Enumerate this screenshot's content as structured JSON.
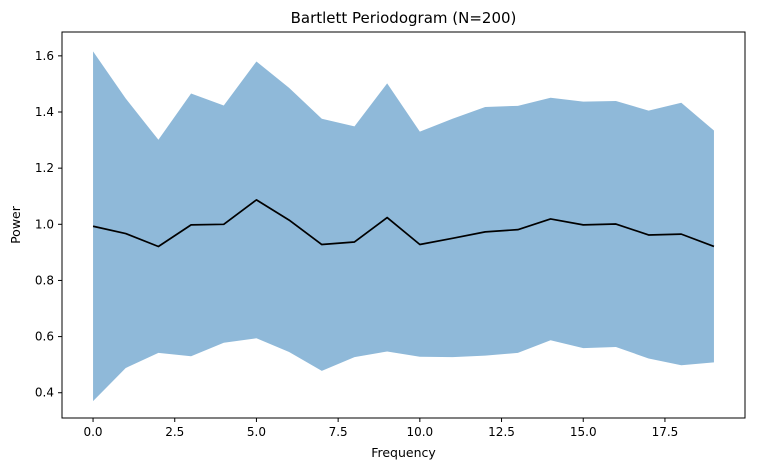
{
  "chart_data": {
    "type": "line",
    "title": "Bartlett Periodogram (N=200)",
    "xlabel": "Frequency",
    "ylabel": "Power",
    "xlim": [
      -0.95,
      19.95
    ],
    "ylim": [
      0.31,
      1.685
    ],
    "xticks": [
      0.0,
      2.5,
      5.0,
      7.5,
      10.0,
      12.5,
      15.0,
      17.5
    ],
    "xtick_labels": [
      "0.0",
      "2.5",
      "5.0",
      "7.5",
      "10.0",
      "12.5",
      "15.0",
      "17.5"
    ],
    "yticks": [
      0.4,
      0.6,
      0.8,
      1.0,
      1.2,
      1.4,
      1.6
    ],
    "ytick_labels": [
      "0.4",
      "0.6",
      "0.8",
      "1.0",
      "1.2",
      "1.4",
      "1.6"
    ],
    "grid": false,
    "x": [
      0,
      1,
      2,
      3,
      4,
      5,
      6,
      7,
      8,
      9,
      10,
      11,
      12,
      13,
      14,
      15,
      16,
      17,
      18,
      19
    ],
    "series": [
      {
        "type": "line",
        "color": "#000000",
        "values": [
          0.993,
          0.967,
          0.921,
          0.998,
          1.0,
          1.087,
          1.015,
          0.928,
          0.937,
          1.024,
          0.928,
          0.95,
          0.973,
          0.981,
          1.019,
          0.998,
          1.001,
          0.962,
          0.965,
          0.921
        ]
      },
      {
        "type": "band",
        "color": "#8fb9d9",
        "upper": [
          1.616,
          1.448,
          1.301,
          1.466,
          1.423,
          1.58,
          1.486,
          1.376,
          1.349,
          1.502,
          1.33,
          1.376,
          1.418,
          1.422,
          1.451,
          1.437,
          1.439,
          1.405,
          1.433,
          1.334
        ],
        "lower": [
          0.37,
          0.488,
          0.542,
          0.53,
          0.578,
          0.594,
          0.545,
          0.478,
          0.527,
          0.547,
          0.528,
          0.527,
          0.532,
          0.542,
          0.587,
          0.559,
          0.563,
          0.522,
          0.498,
          0.508
        ]
      }
    ]
  }
}
